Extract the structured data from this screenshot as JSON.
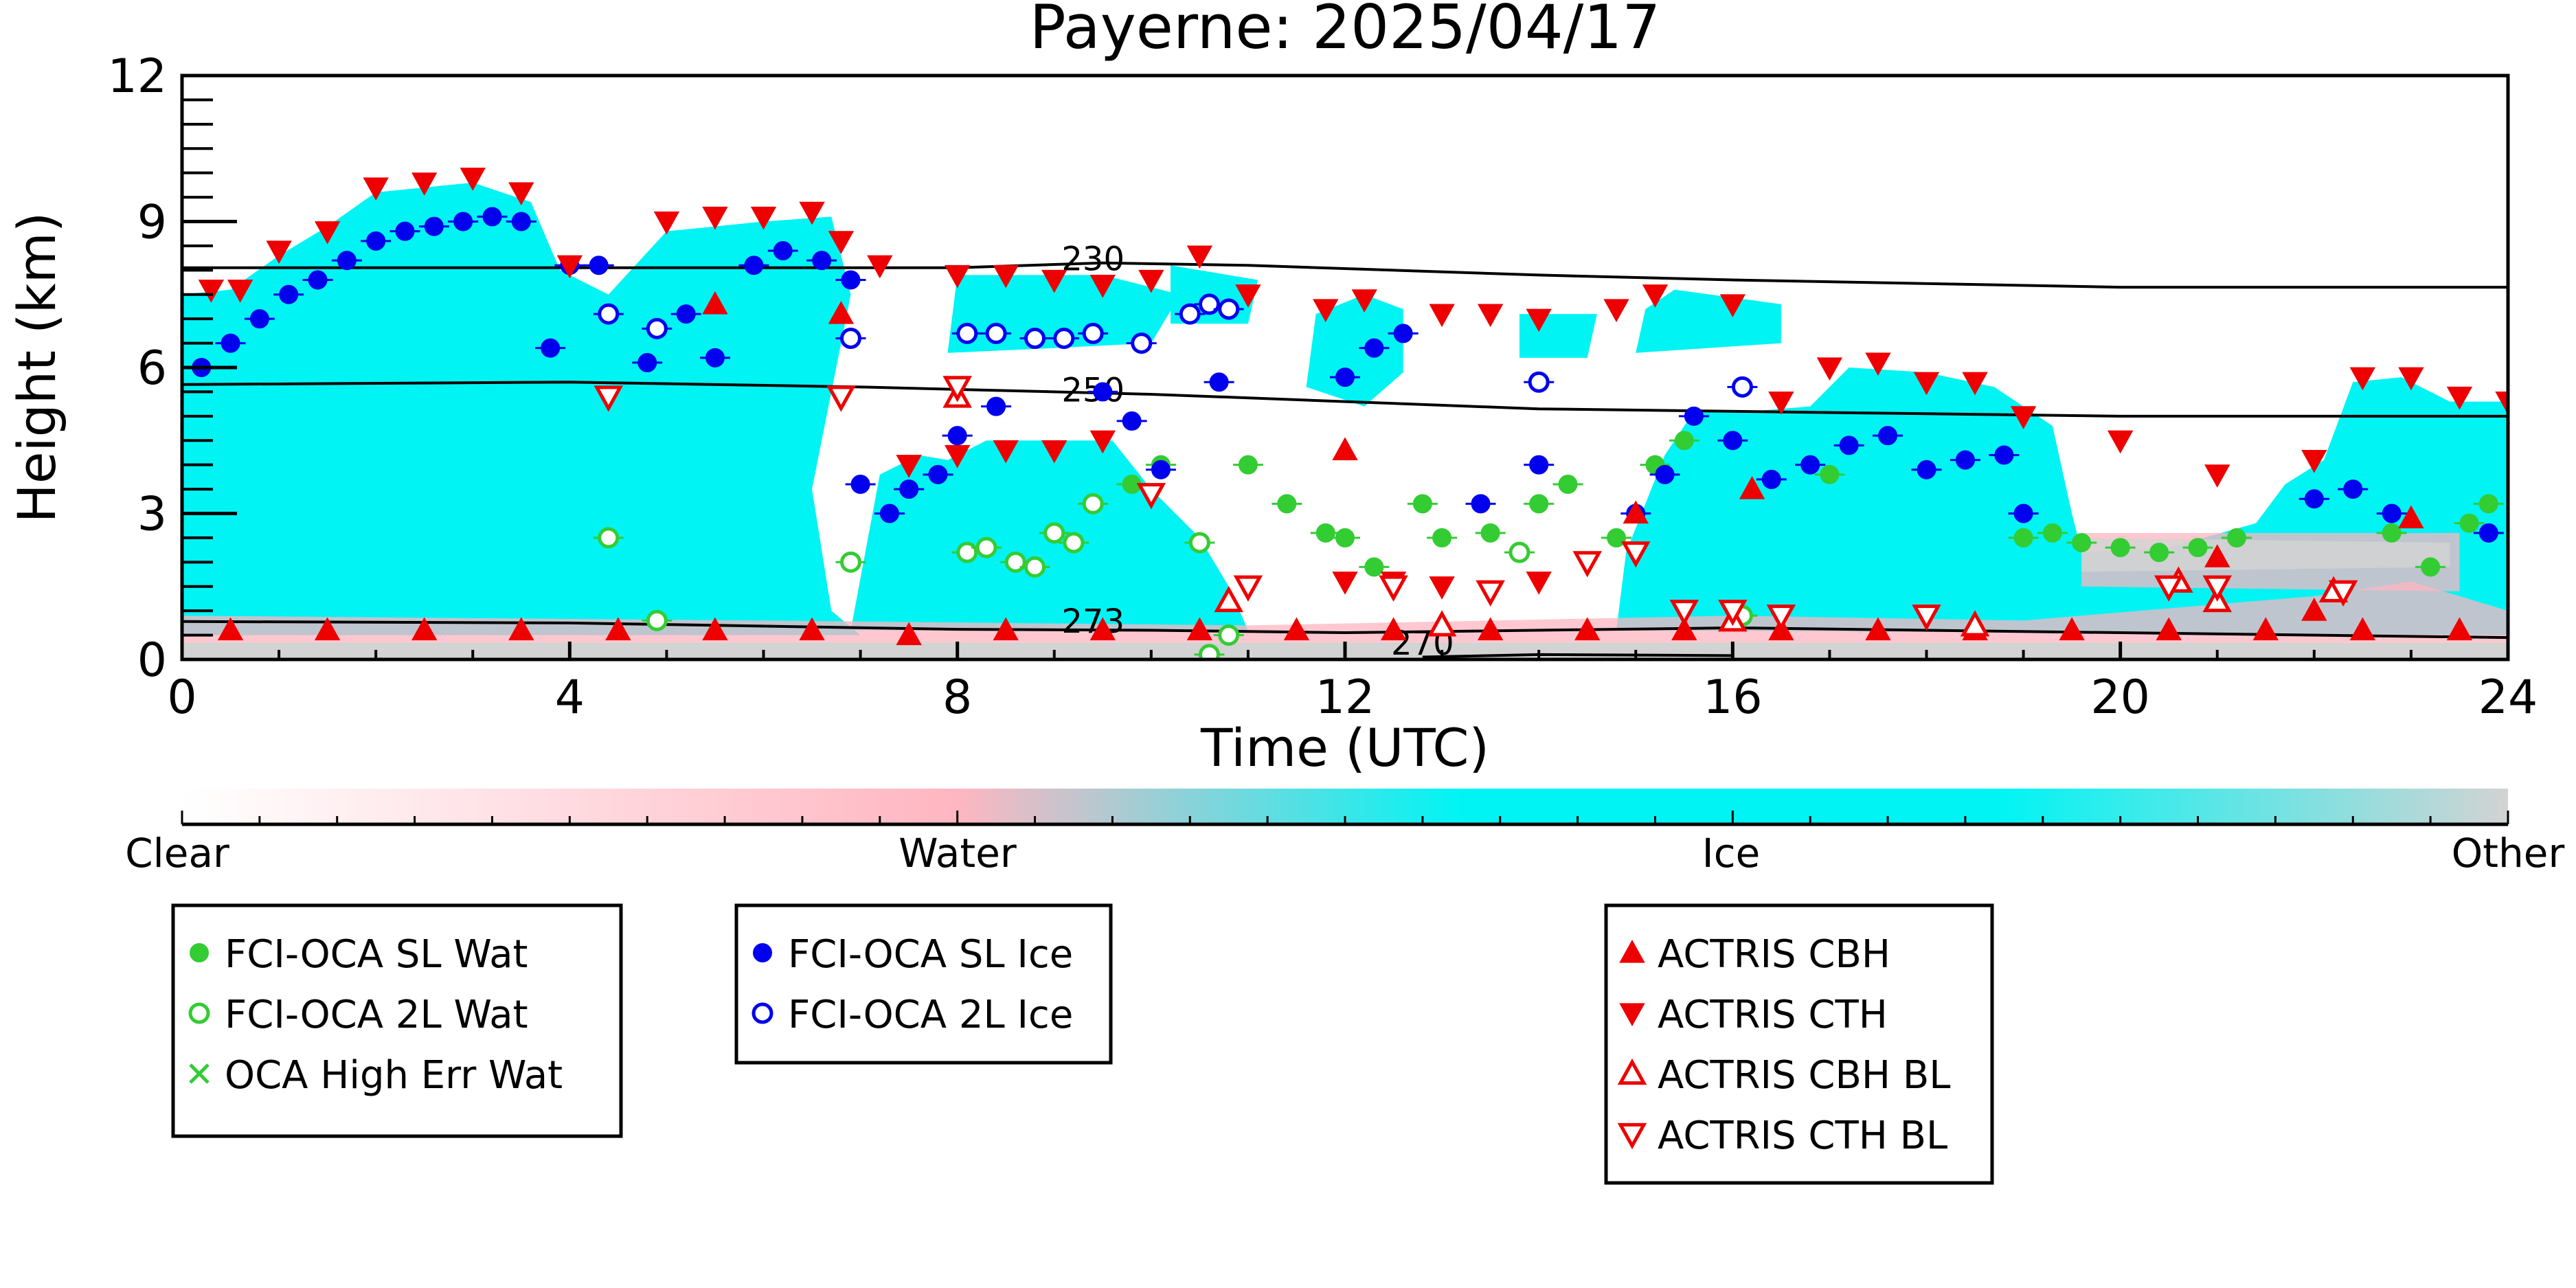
{
  "chart_data": {
    "type": "scatter",
    "title": "Payerne: 2025/04/17",
    "xlabel": "Time (UTC)",
    "ylabel": "Height (km)",
    "xlim": [
      0,
      24
    ],
    "ylim": [
      0,
      12
    ],
    "xticks": [
      0,
      4,
      8,
      12,
      16,
      20,
      24
    ],
    "yticks": [
      0,
      3,
      6,
      9,
      12
    ],
    "colorbar": {
      "labels": [
        "Clear",
        "Water",
        "Ice",
        "Other"
      ],
      "colors": {
        "clear": "#ffffff",
        "water": "#ffb6c1",
        "ice": "#00f4f4",
        "other": "#d3d3d3"
      }
    },
    "contours": [
      {
        "label": "230",
        "points": [
          [
            0,
            8.05
          ],
          [
            4,
            8.05
          ],
          [
            8,
            8.05
          ],
          [
            9.5,
            8.15
          ],
          [
            11,
            8.1
          ],
          [
            14,
            7.9
          ],
          [
            16,
            7.8
          ],
          [
            20,
            7.65
          ],
          [
            24,
            7.65
          ]
        ]
      },
      {
        "label": "250",
        "points": [
          [
            0,
            5.65
          ],
          [
            4,
            5.7
          ],
          [
            7,
            5.6
          ],
          [
            10,
            5.45
          ],
          [
            12,
            5.3
          ],
          [
            14,
            5.15
          ],
          [
            18,
            5.05
          ],
          [
            20,
            5.0
          ],
          [
            24,
            5.0
          ]
        ]
      },
      {
        "label": "273",
        "points": [
          [
            0,
            0.78
          ],
          [
            4,
            0.75
          ],
          [
            8,
            0.62
          ],
          [
            10,
            0.6
          ],
          [
            12,
            0.55
          ],
          [
            16,
            0.65
          ],
          [
            20,
            0.55
          ],
          [
            24,
            0.45
          ]
        ]
      },
      {
        "label": "270",
        "points": [
          [
            12.8,
            0.05
          ],
          [
            14,
            0.1
          ],
          [
            16,
            0.08
          ]
        ]
      }
    ],
    "contour_label_positions": [
      {
        "label": "230",
        "x": 9.4,
        "y": 8.0
      },
      {
        "label": "250",
        "x": 9.4,
        "y": 5.3
      },
      {
        "label": "273",
        "x": 9.4,
        "y": 0.55
      },
      {
        "label": "270",
        "x": 12.8,
        "y": 0.1
      }
    ],
    "series": [
      {
        "name": "FCI-OCA SL Wat",
        "marker": "circle-filled",
        "color": "#33cc33",
        "points": [
          [
            9.8,
            3.6
          ],
          [
            10.1,
            4.0
          ],
          [
            11.0,
            4.0
          ],
          [
            11.4,
            3.2
          ],
          [
            11.8,
            2.6
          ],
          [
            12.0,
            2.5
          ],
          [
            12.3,
            1.9
          ],
          [
            12.8,
            3.2
          ],
          [
            13.0,
            2.5
          ],
          [
            13.5,
            2.6
          ],
          [
            14.0,
            3.2
          ],
          [
            14.3,
            3.6
          ],
          [
            14.8,
            2.5
          ],
          [
            15.2,
            4.0
          ],
          [
            15.5,
            4.5
          ],
          [
            17.0,
            3.8
          ],
          [
            19.0,
            2.5
          ],
          [
            19.3,
            2.6
          ],
          [
            19.6,
            2.4
          ],
          [
            20.0,
            2.3
          ],
          [
            20.4,
            2.2
          ],
          [
            20.8,
            2.3
          ],
          [
            21.2,
            2.5
          ],
          [
            22.8,
            2.6
          ],
          [
            23.2,
            1.9
          ],
          [
            23.6,
            2.8
          ],
          [
            23.8,
            3.2
          ]
        ]
      },
      {
        "name": "FCI-OCA 2L Wat",
        "marker": "circle-open",
        "color": "#33cc33",
        "points": [
          [
            4.4,
            2.5
          ],
          [
            4.9,
            0.8
          ],
          [
            6.9,
            2.0
          ],
          [
            8.1,
            2.2
          ],
          [
            8.3,
            2.3
          ],
          [
            8.6,
            2.0
          ],
          [
            8.8,
            1.9
          ],
          [
            9.0,
            2.6
          ],
          [
            9.2,
            2.4
          ],
          [
            9.4,
            3.2
          ],
          [
            10.5,
            2.4
          ],
          [
            10.8,
            0.5
          ],
          [
            10.6,
            0.1
          ],
          [
            13.8,
            2.2
          ],
          [
            16.1,
            0.9
          ]
        ]
      },
      {
        "name": "OCA High Err Wat",
        "marker": "x",
        "color": "#33cc33",
        "points": []
      },
      {
        "name": "FCI-OCA SL Ice",
        "marker": "circle-filled",
        "color": "#0000ee",
        "points": [
          [
            0.2,
            6.0
          ],
          [
            0.5,
            6.5
          ],
          [
            0.8,
            7.0
          ],
          [
            1.1,
            7.5
          ],
          [
            1.4,
            7.8
          ],
          [
            1.7,
            8.2
          ],
          [
            2.0,
            8.6
          ],
          [
            2.3,
            8.8
          ],
          [
            2.6,
            8.9
          ],
          [
            2.9,
            9.0
          ],
          [
            3.2,
            9.1
          ],
          [
            3.5,
            9.0
          ],
          [
            3.8,
            6.4
          ],
          [
            4.0,
            8.1
          ],
          [
            4.3,
            8.1
          ],
          [
            4.8,
            6.1
          ],
          [
            5.2,
            7.1
          ],
          [
            5.5,
            6.2
          ],
          [
            5.9,
            8.1
          ],
          [
            6.2,
            8.4
          ],
          [
            6.6,
            8.2
          ],
          [
            6.9,
            7.8
          ],
          [
            7.0,
            3.6
          ],
          [
            7.3,
            3.0
          ],
          [
            7.5,
            3.5
          ],
          [
            7.8,
            3.8
          ],
          [
            8.0,
            4.6
          ],
          [
            8.4,
            5.2
          ],
          [
            9.5,
            5.5
          ],
          [
            9.8,
            4.9
          ],
          [
            10.1,
            3.9
          ],
          [
            10.7,
            5.7
          ],
          [
            12.0,
            5.8
          ],
          [
            12.3,
            6.4
          ],
          [
            12.6,
            6.7
          ],
          [
            13.4,
            3.2
          ],
          [
            14.0,
            4.0
          ],
          [
            15.0,
            3.0
          ],
          [
            15.3,
            3.8
          ],
          [
            15.6,
            5.0
          ],
          [
            16.0,
            4.5
          ],
          [
            16.4,
            3.7
          ],
          [
            16.8,
            4.0
          ],
          [
            17.2,
            4.4
          ],
          [
            17.6,
            4.6
          ],
          [
            18.0,
            3.9
          ],
          [
            18.4,
            4.1
          ],
          [
            18.8,
            4.2
          ],
          [
            19.0,
            3.0
          ],
          [
            22.0,
            3.3
          ],
          [
            22.4,
            3.5
          ],
          [
            22.8,
            3.0
          ],
          [
            23.8,
            2.6
          ]
        ]
      },
      {
        "name": "FCI-OCA 2L Ice",
        "marker": "circle-open",
        "color": "#0000ee",
        "points": [
          [
            4.4,
            7.1
          ],
          [
            4.9,
            6.8
          ],
          [
            6.9,
            6.6
          ],
          [
            8.1,
            6.7
          ],
          [
            8.4,
            6.7
          ],
          [
            8.8,
            6.6
          ],
          [
            9.1,
            6.6
          ],
          [
            9.4,
            6.7
          ],
          [
            9.9,
            6.5
          ],
          [
            10.4,
            7.1
          ],
          [
            10.6,
            7.3
          ],
          [
            10.8,
            7.2
          ],
          [
            14.0,
            5.7
          ],
          [
            16.1,
            5.6
          ]
        ]
      },
      {
        "name": "ACTRIS CBH",
        "marker": "triangle-up-filled",
        "color": "#ee0000",
        "points": [
          [
            0.5,
            0.6
          ],
          [
            1.5,
            0.6
          ],
          [
            2.5,
            0.6
          ],
          [
            3.5,
            0.6
          ],
          [
            4.5,
            0.6
          ],
          [
            5.5,
            0.6
          ],
          [
            6.5,
            0.6
          ],
          [
            7.5,
            0.5
          ],
          [
            8.5,
            0.6
          ],
          [
            9.5,
            0.6
          ],
          [
            10.5,
            0.6
          ],
          [
            11.5,
            0.6
          ],
          [
            12.5,
            0.6
          ],
          [
            13.5,
            0.6
          ],
          [
            14.5,
            0.6
          ],
          [
            15.5,
            0.6
          ],
          [
            16.5,
            0.6
          ],
          [
            17.5,
            0.6
          ],
          [
            18.5,
            0.6
          ],
          [
            19.5,
            0.6
          ],
          [
            20.5,
            0.6
          ],
          [
            21.5,
            0.6
          ],
          [
            22.5,
            0.6
          ],
          [
            23.5,
            0.6
          ],
          [
            5.5,
            7.3
          ],
          [
            6.8,
            7.1
          ],
          [
            12.0,
            4.3
          ],
          [
            15.0,
            3.0
          ],
          [
            16.2,
            3.5
          ],
          [
            21.0,
            2.1
          ],
          [
            22.0,
            1.0
          ],
          [
            23.0,
            2.9
          ]
        ]
      },
      {
        "name": "ACTRIS CTH",
        "marker": "triangle-down-filled",
        "color": "#ee0000",
        "points": [
          [
            0.3,
            7.6
          ],
          [
            0.6,
            7.6
          ],
          [
            1.0,
            8.4
          ],
          [
            1.5,
            8.8
          ],
          [
            2.0,
            9.7
          ],
          [
            2.5,
            9.8
          ],
          [
            3.0,
            9.9
          ],
          [
            3.5,
            9.6
          ],
          [
            4.0,
            8.1
          ],
          [
            5.0,
            9.0
          ],
          [
            5.5,
            9.1
          ],
          [
            6.0,
            9.1
          ],
          [
            6.5,
            9.2
          ],
          [
            6.8,
            8.6
          ],
          [
            7.2,
            8.1
          ],
          [
            8.0,
            7.9
          ],
          [
            8.5,
            7.9
          ],
          [
            9.0,
            7.8
          ],
          [
            9.5,
            7.7
          ],
          [
            10.0,
            7.8
          ],
          [
            10.5,
            8.3
          ],
          [
            11.0,
            7.5
          ],
          [
            11.8,
            7.2
          ],
          [
            12.2,
            7.4
          ],
          [
            13.0,
            7.1
          ],
          [
            13.5,
            7.1
          ],
          [
            14.0,
            7.0
          ],
          [
            14.8,
            7.2
          ],
          [
            15.2,
            7.5
          ],
          [
            16.0,
            7.3
          ],
          [
            16.5,
            5.3
          ],
          [
            17.0,
            6.0
          ],
          [
            17.5,
            6.1
          ],
          [
            18.0,
            5.7
          ],
          [
            18.5,
            5.7
          ],
          [
            19.0,
            5.0
          ],
          [
            20.0,
            4.5
          ],
          [
            21.0,
            3.8
          ],
          [
            22.0,
            4.1
          ],
          [
            22.5,
            5.8
          ],
          [
            23.0,
            5.8
          ],
          [
            23.5,
            5.4
          ],
          [
            24.0,
            5.3
          ],
          [
            7.5,
            4.0
          ],
          [
            8.0,
            4.2
          ],
          [
            8.5,
            4.3
          ],
          [
            9.0,
            4.3
          ],
          [
            9.5,
            4.5
          ],
          [
            10.0,
            3.4
          ],
          [
            14.0,
            1.6
          ],
          [
            12.0,
            1.6
          ],
          [
            12.5,
            1.6
          ],
          [
            13.0,
            1.5
          ]
        ]
      },
      {
        "name": "ACTRIS CBH BL",
        "marker": "triangle-up-open",
        "color": "#ee0000",
        "points": [
          [
            8.0,
            5.4
          ],
          [
            10.8,
            1.2
          ],
          [
            13.0,
            0.7
          ],
          [
            16.0,
            0.8
          ],
          [
            18.5,
            0.7
          ],
          [
            20.6,
            1.6
          ],
          [
            21.0,
            1.2
          ],
          [
            22.2,
            1.4
          ]
        ]
      },
      {
        "name": "ACTRIS CTH BL",
        "marker": "triangle-down-open",
        "color": "#ee0000",
        "points": [
          [
            4.4,
            5.4
          ],
          [
            6.8,
            5.4
          ],
          [
            8.0,
            5.6
          ],
          [
            10.0,
            3.4
          ],
          [
            11.0,
            1.5
          ],
          [
            12.5,
            1.5
          ],
          [
            13.5,
            1.4
          ],
          [
            14.5,
            2.0
          ],
          [
            15.0,
            2.2
          ],
          [
            15.5,
            1.0
          ],
          [
            16.0,
            1.0
          ],
          [
            16.5,
            0.9
          ],
          [
            18.0,
            0.9
          ],
          [
            20.5,
            1.5
          ],
          [
            21.0,
            1.5
          ],
          [
            22.3,
            1.4
          ]
        ]
      }
    ],
    "legend_groups": [
      [
        "FCI-OCA SL Wat",
        "FCI-OCA 2L Wat",
        "OCA High Err Wat"
      ],
      [
        "FCI-OCA SL Ice",
        "FCI-OCA 2L Ice"
      ],
      [
        "ACTRIS CBH",
        "ACTRIS CTH",
        "ACTRIS CBH BL",
        "ACTRIS CTH BL"
      ]
    ]
  }
}
